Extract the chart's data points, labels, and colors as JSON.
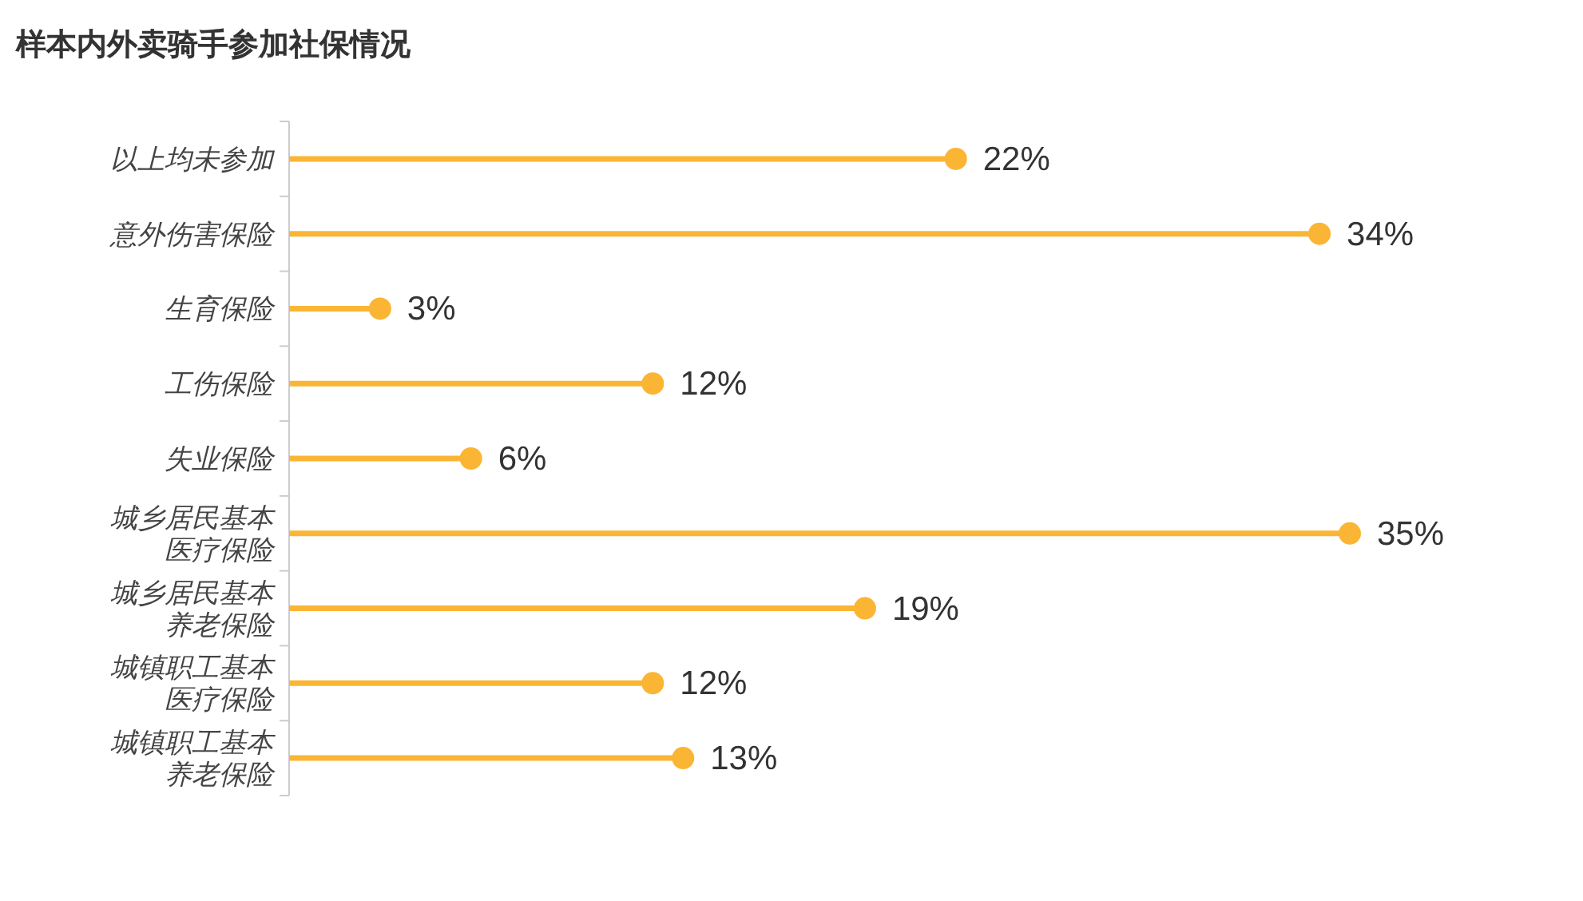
{
  "chart_data": {
    "type": "lollipop",
    "orientation": "horizontal",
    "title": "样本内外卖骑手参加社保情况",
    "categories": [
      "以上均未参加",
      "意外伤害保险",
      "生育保险",
      "工伤保险",
      "失业保险",
      "城乡居民基本医疗保险",
      "城乡居民基本养老保险",
      "城镇职工基本医疗保险",
      "城镇职工基本养老保险"
    ],
    "values": [
      22,
      34,
      3,
      12,
      6,
      35,
      19,
      12,
      13
    ],
    "value_labels": [
      "22%",
      "34%",
      "3%",
      "12%",
      "6%",
      "35%",
      "19%",
      "12%",
      "13%"
    ],
    "color": "#fbb534",
    "marker": "circle"
  }
}
